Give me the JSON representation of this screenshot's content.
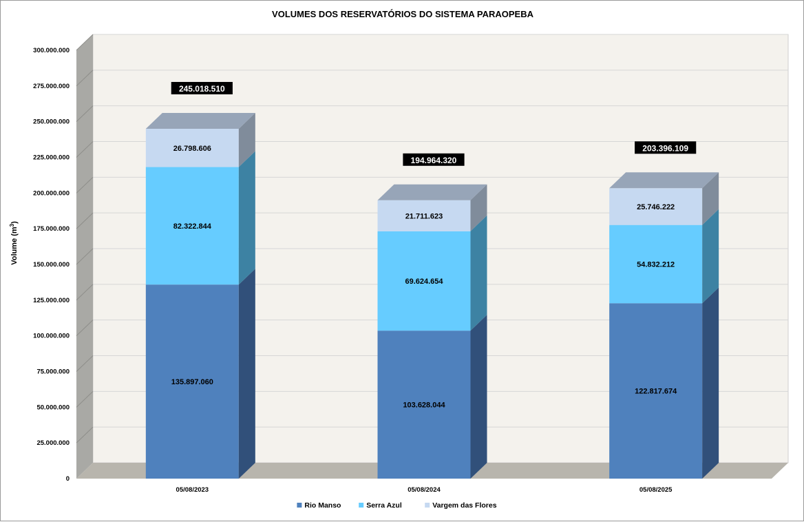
{
  "chart_data": {
    "type": "bar",
    "stacked": true,
    "three_d": true,
    "title": "VOLUMES DOS RESERVATÓRIOS DO SISTEMA PARAOPEBA",
    "ylabel": "Volume (m³)",
    "xlabel": "",
    "ylim": [
      0,
      300000000
    ],
    "ytick_step": 25000000,
    "yticks": [
      "0",
      "25.000.000",
      "50.000.000",
      "75.000.000",
      "100.000.000",
      "125.000.000",
      "150.000.000",
      "175.000.000",
      "200.000.000",
      "225.000.000",
      "250.000.000",
      "275.000.000",
      "300.000.000"
    ],
    "categories": [
      "05/08/2023",
      "05/08/2024",
      "05/08/2025"
    ],
    "series": [
      {
        "name": "Rio Manso",
        "values": [
          135897060,
          103628044,
          122817674
        ],
        "labels": [
          "135.897.060",
          "103.628.044",
          "122.817.674"
        ],
        "color": "#4f81bd",
        "side_color": "#31507a",
        "top_color": "#6f93c4"
      },
      {
        "name": "Serra Azul",
        "values": [
          82322844,
          69624654,
          54832212
        ],
        "labels": [
          "82.322.844",
          "69.624.654",
          "54.832.212"
        ],
        "color": "#66ccff",
        "side_color": "#3d82a3",
        "top_color": "#85d6ff"
      },
      {
        "name": "Vargem das Flores",
        "values": [
          26798606,
          21711623,
          25746222
        ],
        "labels": [
          "26.798.606",
          "21.711.623",
          "25.746.222"
        ],
        "color": "#c6d9f1",
        "side_color": "#808c9b",
        "top_color": "#97a5b8"
      }
    ],
    "totals": [
      245018510,
      194964320,
      203396109
    ],
    "total_labels": [
      "245.018.510",
      "194.964.320",
      "203.396.109"
    ],
    "grid": true,
    "legend_position": "bottom",
    "colors": {
      "wall": "#f4f2ed",
      "side_wall": "#a9a9a5",
      "floor": "#b8b5ad",
      "grid": "#d6d6d6",
      "total_label_bg": "#000000"
    }
  }
}
